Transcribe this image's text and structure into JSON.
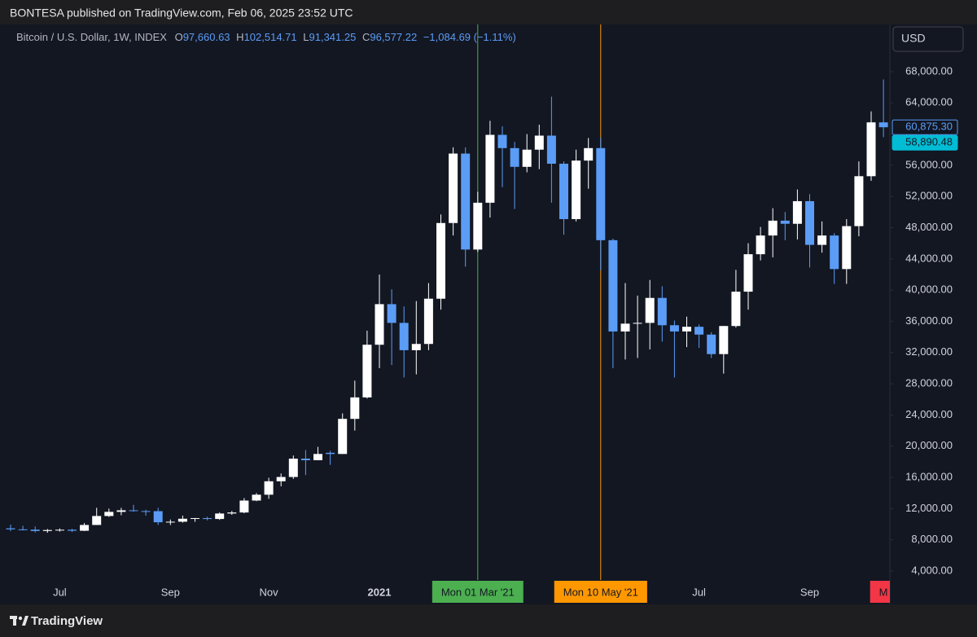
{
  "header": {
    "published": "BONTESA published on TradingView.com, Feb 06, 2025 23:52 UTC",
    "currency_button": "USD",
    "brand": "TradingView"
  },
  "legend": {
    "symbol": "Bitcoin / U.S. Dollar, 1W, INDEX",
    "ohlc": [
      {
        "key": "O",
        "value": "97,660.63"
      },
      {
        "key": "H",
        "value": "102,514.71"
      },
      {
        "key": "L",
        "value": "91,341.25"
      },
      {
        "key": "C",
        "value": "96,577.22"
      }
    ],
    "change": "−1,084.69 (−1.11%)"
  },
  "chart_data": {
    "type": "candlestick",
    "up_color": "#ffffff",
    "down_color": "#5b9cf6",
    "grid": false,
    "categories": [
      null,
      null,
      null,
      null,
      "Jul",
      null,
      null,
      null,
      null,
      null,
      null,
      null,
      null,
      "Sep",
      null,
      null,
      null,
      null,
      null,
      null,
      null,
      "Nov",
      null,
      null,
      null,
      null,
      null,
      null,
      null,
      null,
      "2021",
      null,
      null,
      null,
      null,
      null,
      null,
      null,
      "Mon 01 Mar '21",
      null,
      null,
      null,
      null,
      null,
      null,
      null,
      null,
      null,
      "Mon 10 May '21",
      null,
      null,
      null,
      null,
      null,
      null,
      null,
      "Jul",
      null,
      null,
      null,
      null,
      null,
      null,
      null,
      null,
      "Sep",
      null,
      null,
      null,
      null,
      null,
      "M"
    ],
    "open": [
      9470,
      9340,
      9300,
      9130,
      9250,
      9290,
      9160,
      9900,
      11050,
      11580,
      11780,
      11680,
      11670,
      10250,
      10320,
      10700,
      10780,
      10670,
      11370,
      11500,
      13030,
      13780,
      15500,
      16050,
      18400,
      18200,
      19150,
      19000,
      23500,
      26250,
      33000,
      38200,
      35800,
      32300,
      33100,
      38900,
      48600,
      57500,
      45200,
      51200,
      59900,
      58200,
      55800,
      58000,
      59800,
      56200,
      49100,
      56600,
      58200,
      46400,
      34700,
      35700,
      35800,
      39000,
      35500,
      34700,
      35300,
      34300,
      31800,
      35400,
      39800,
      44600,
      47000,
      48900,
      48500,
      51400,
      45800,
      47000,
      42700,
      48200,
      54600,
      61500
    ],
    "high": [
      9950,
      9800,
      9700,
      9380,
      9450,
      9400,
      10150,
      12100,
      12000,
      12100,
      12480,
      11850,
      12100,
      10600,
      11100,
      10800,
      10950,
      11500,
      11700,
      13350,
      14000,
      15950,
      16500,
      18800,
      19500,
      19900,
      19400,
      24200,
      28400,
      34800,
      42000,
      40100,
      37900,
      38600,
      40900,
      49700,
      58300,
      58300,
      52600,
      61700,
      61000,
      59000,
      60000,
      61200,
      64800,
      56500,
      58000,
      59500,
      59600,
      46600,
      40900,
      39300,
      41300,
      40500,
      36100,
      36600,
      35600,
      34600,
      35400,
      42600,
      46000,
      48100,
      50500,
      50000,
      52900,
      52300,
      48800,
      47300,
      49100,
      56500,
      62900,
      67000
    ],
    "low": [
      9100,
      9200,
      8950,
      8900,
      9050,
      9000,
      9120,
      9900,
      10930,
      11150,
      11600,
      11100,
      9900,
      9900,
      10200,
      10300,
      10500,
      10550,
      11200,
      11400,
      12950,
      13250,
      14850,
      15800,
      16300,
      18200,
      17600,
      19000,
      22000,
      26100,
      30000,
      30400,
      28800,
      29200,
      32300,
      37500,
      47000,
      43000,
      44900,
      49300,
      53200,
      50400,
      55100,
      55500,
      51200,
      47100,
      48800,
      53000,
      42500,
      30000,
      31100,
      31300,
      32400,
      33400,
      28800,
      32700,
      32600,
      31300,
      29300,
      35200,
      37500,
      43800,
      44200,
      46400,
      46500,
      42900,
      44800,
      40800,
      40800,
      46900,
      54000,
      59600
    ],
    "close": [
      9340,
      9300,
      9130,
      9250,
      9290,
      9160,
      9900,
      11050,
      11580,
      11780,
      11680,
      11670,
      10250,
      10320,
      10700,
      10780,
      10670,
      11370,
      11500,
      13030,
      13780,
      15500,
      16050,
      18400,
      18200,
      19000,
      19000,
      23500,
      26250,
      33000,
      38200,
      35800,
      32300,
      33100,
      38900,
      48600,
      57500,
      45200,
      51200,
      59900,
      58200,
      55800,
      58000,
      59800,
      56200,
      49100,
      56600,
      58200,
      46400,
      34700,
      35700,
      35800,
      39000,
      35500,
      34700,
      35300,
      34300,
      31800,
      35400,
      39800,
      44600,
      47000,
      48900,
      48500,
      51400,
      45800,
      47000,
      42700,
      48200,
      54600,
      61500,
      60875.3
    ],
    "ylim": [
      2850,
      74050
    ],
    "yticks": [
      {
        "value": 68000,
        "label": "68,000.00"
      },
      {
        "value": 64000,
        "label": "64,000.00"
      },
      {
        "value": 60000,
        "label": "60,000.00"
      },
      {
        "value": 56000,
        "label": "56,000.00"
      },
      {
        "value": 52000,
        "label": "52,000.00"
      },
      {
        "value": 48000,
        "label": "48,000.00"
      },
      {
        "value": 44000,
        "label": "44,000.00"
      },
      {
        "value": 40000,
        "label": "40,000.00"
      },
      {
        "value": 36000,
        "label": "36,000.00"
      },
      {
        "value": 32000,
        "label": "32,000.00"
      },
      {
        "value": 28000,
        "label": "28,000.00"
      },
      {
        "value": 24000,
        "label": "24,000.00"
      },
      {
        "value": 20000,
        "label": "20,000.00"
      },
      {
        "value": 16000,
        "label": "16,000.00"
      },
      {
        "value": 12000,
        "label": "12,000.00"
      },
      {
        "value": 8000,
        "label": "8,000.00"
      },
      {
        "value": 4000,
        "label": "4,000.00"
      }
    ],
    "price_tags": [
      {
        "value": 60875.3,
        "label": "60,875.30",
        "style": "outline",
        "color": "#5b9cf6"
      },
      {
        "value": 58890.48,
        "label": "58,890.48",
        "style": "filled",
        "color": "#00bcd4"
      }
    ],
    "x_markers": [
      {
        "label": "Mon 01 Mar '21",
        "color": "#4caf50",
        "line": true
      },
      {
        "label": "Mon 10 May '21",
        "color": "#ff9800",
        "line": true
      },
      {
        "label": "M",
        "color": "#f23645",
        "line": false
      }
    ]
  }
}
